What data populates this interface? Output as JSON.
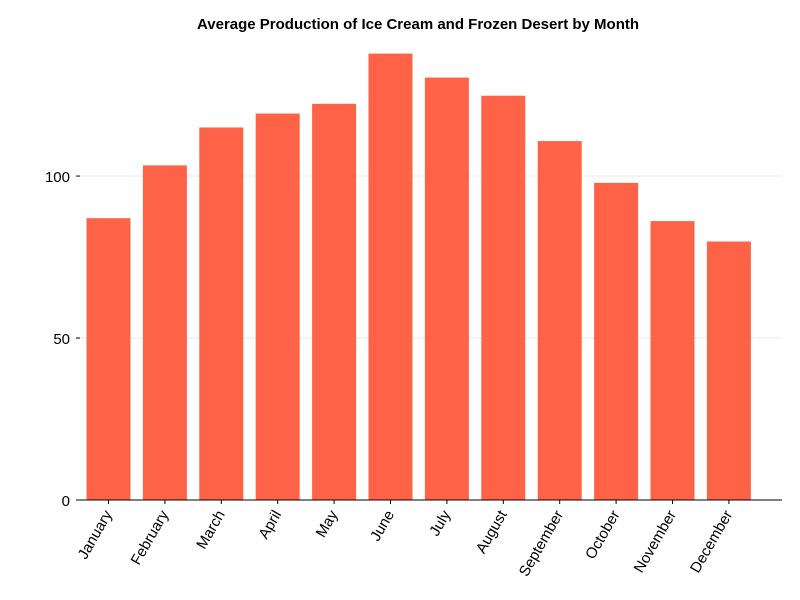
{
  "chart_data": {
    "type": "bar",
    "title": "Average Production of Ice Cream and Frozen Desert by Month",
    "xlabel": "",
    "ylabel": "",
    "categories": [
      "January",
      "February",
      "March",
      "April",
      "May",
      "June",
      "July",
      "August",
      "September",
      "October",
      "November",
      "December"
    ],
    "values": [
      87,
      103.3,
      115,
      119.3,
      122.3,
      137.8,
      130.4,
      124.8,
      110.8,
      97.9,
      86.1,
      79.8
    ],
    "ylim": [
      0,
      142
    ],
    "yticks": [
      0,
      50,
      100
    ],
    "grid": "horizontal",
    "legend": "none",
    "bar_color": "#ff6347",
    "grid_color": "#e9e9e9",
    "axis_color": "#000000"
  }
}
